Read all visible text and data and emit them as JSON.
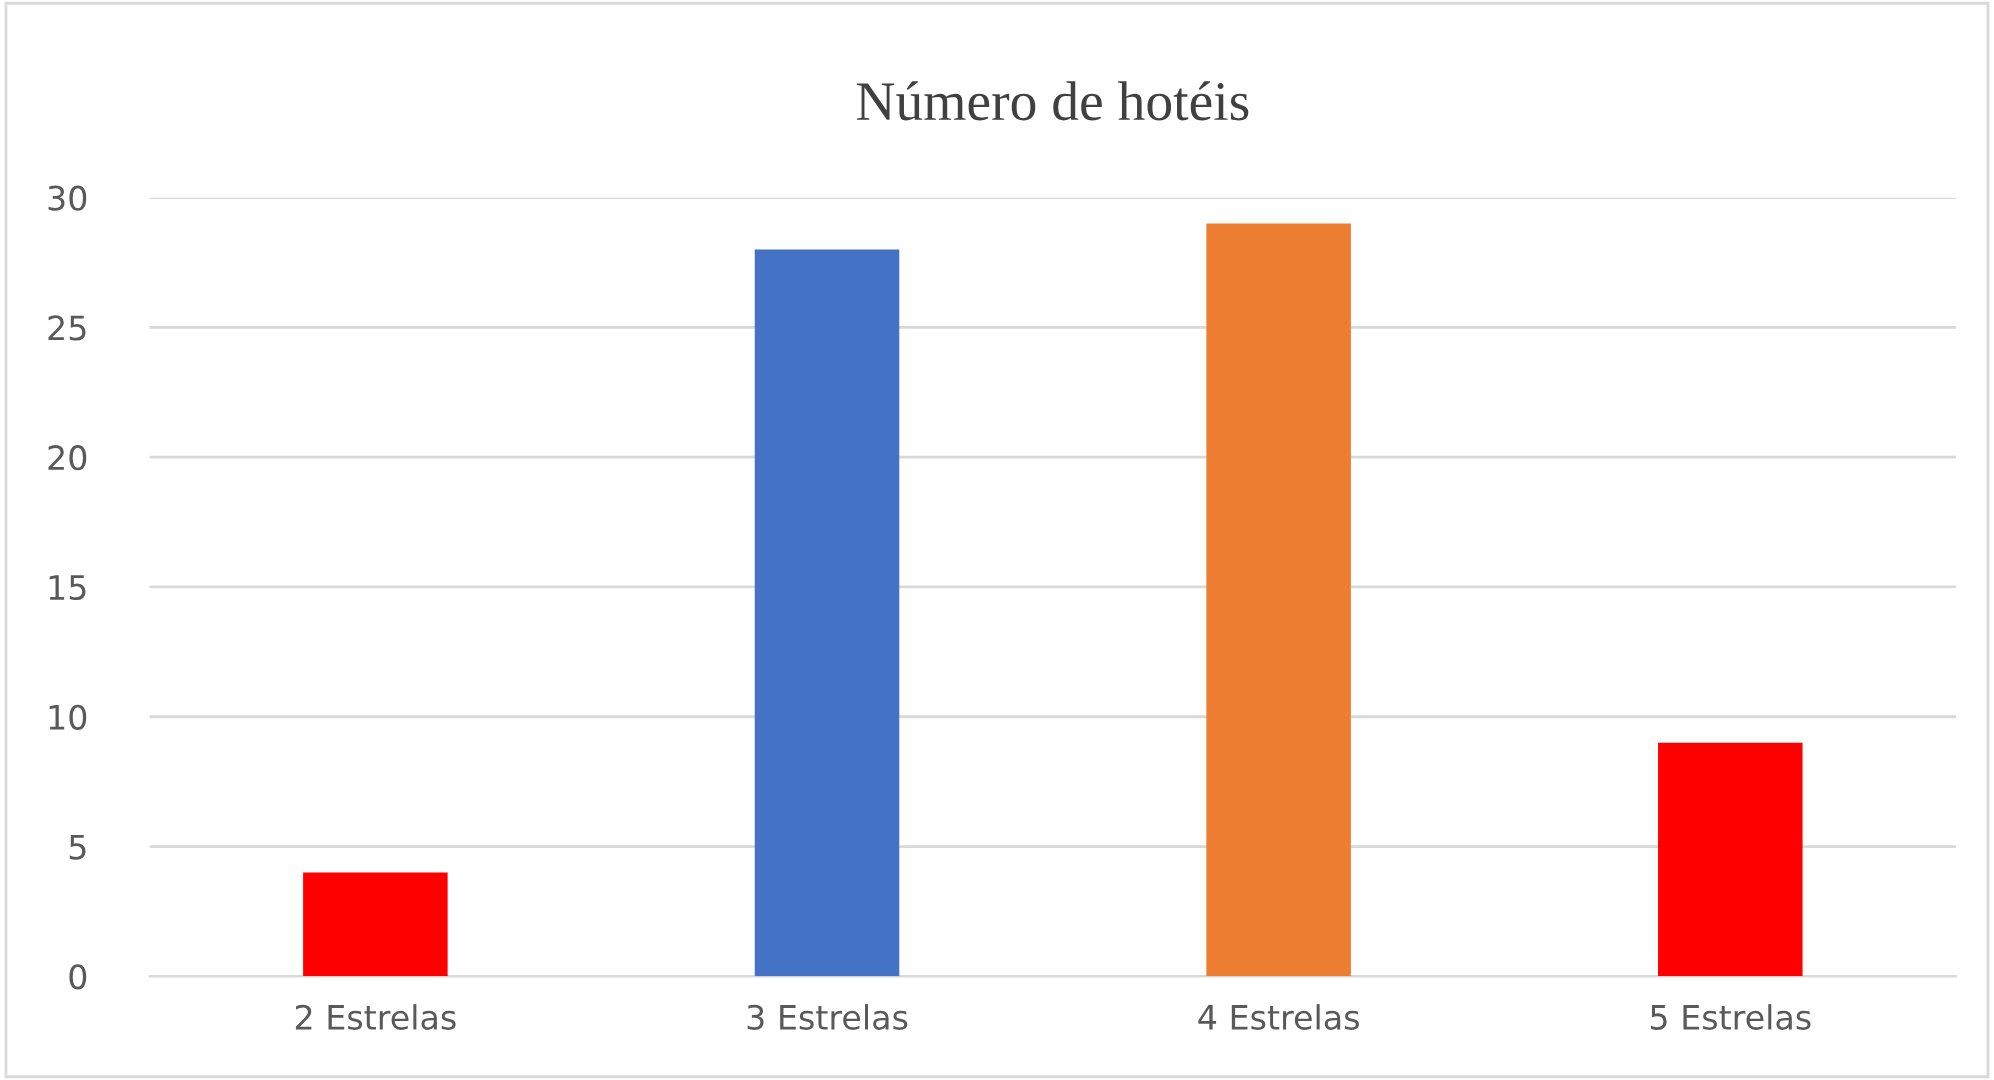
{
  "chart_data": {
    "type": "bar",
    "title": "Número de hotéis",
    "categories": [
      "2 Estrelas",
      "3 Estrelas",
      "4 Estrelas",
      "5 Estrelas"
    ],
    "values": [
      4,
      28,
      29,
      9
    ],
    "colors": [
      "#ff0000",
      "#4472c4",
      "#ed7d31",
      "#ff0000"
    ],
    "ylim": [
      0,
      30
    ],
    "yticks": [
      0,
      5,
      10,
      15,
      20,
      25,
      30
    ],
    "grid": "y",
    "legend": false
  }
}
